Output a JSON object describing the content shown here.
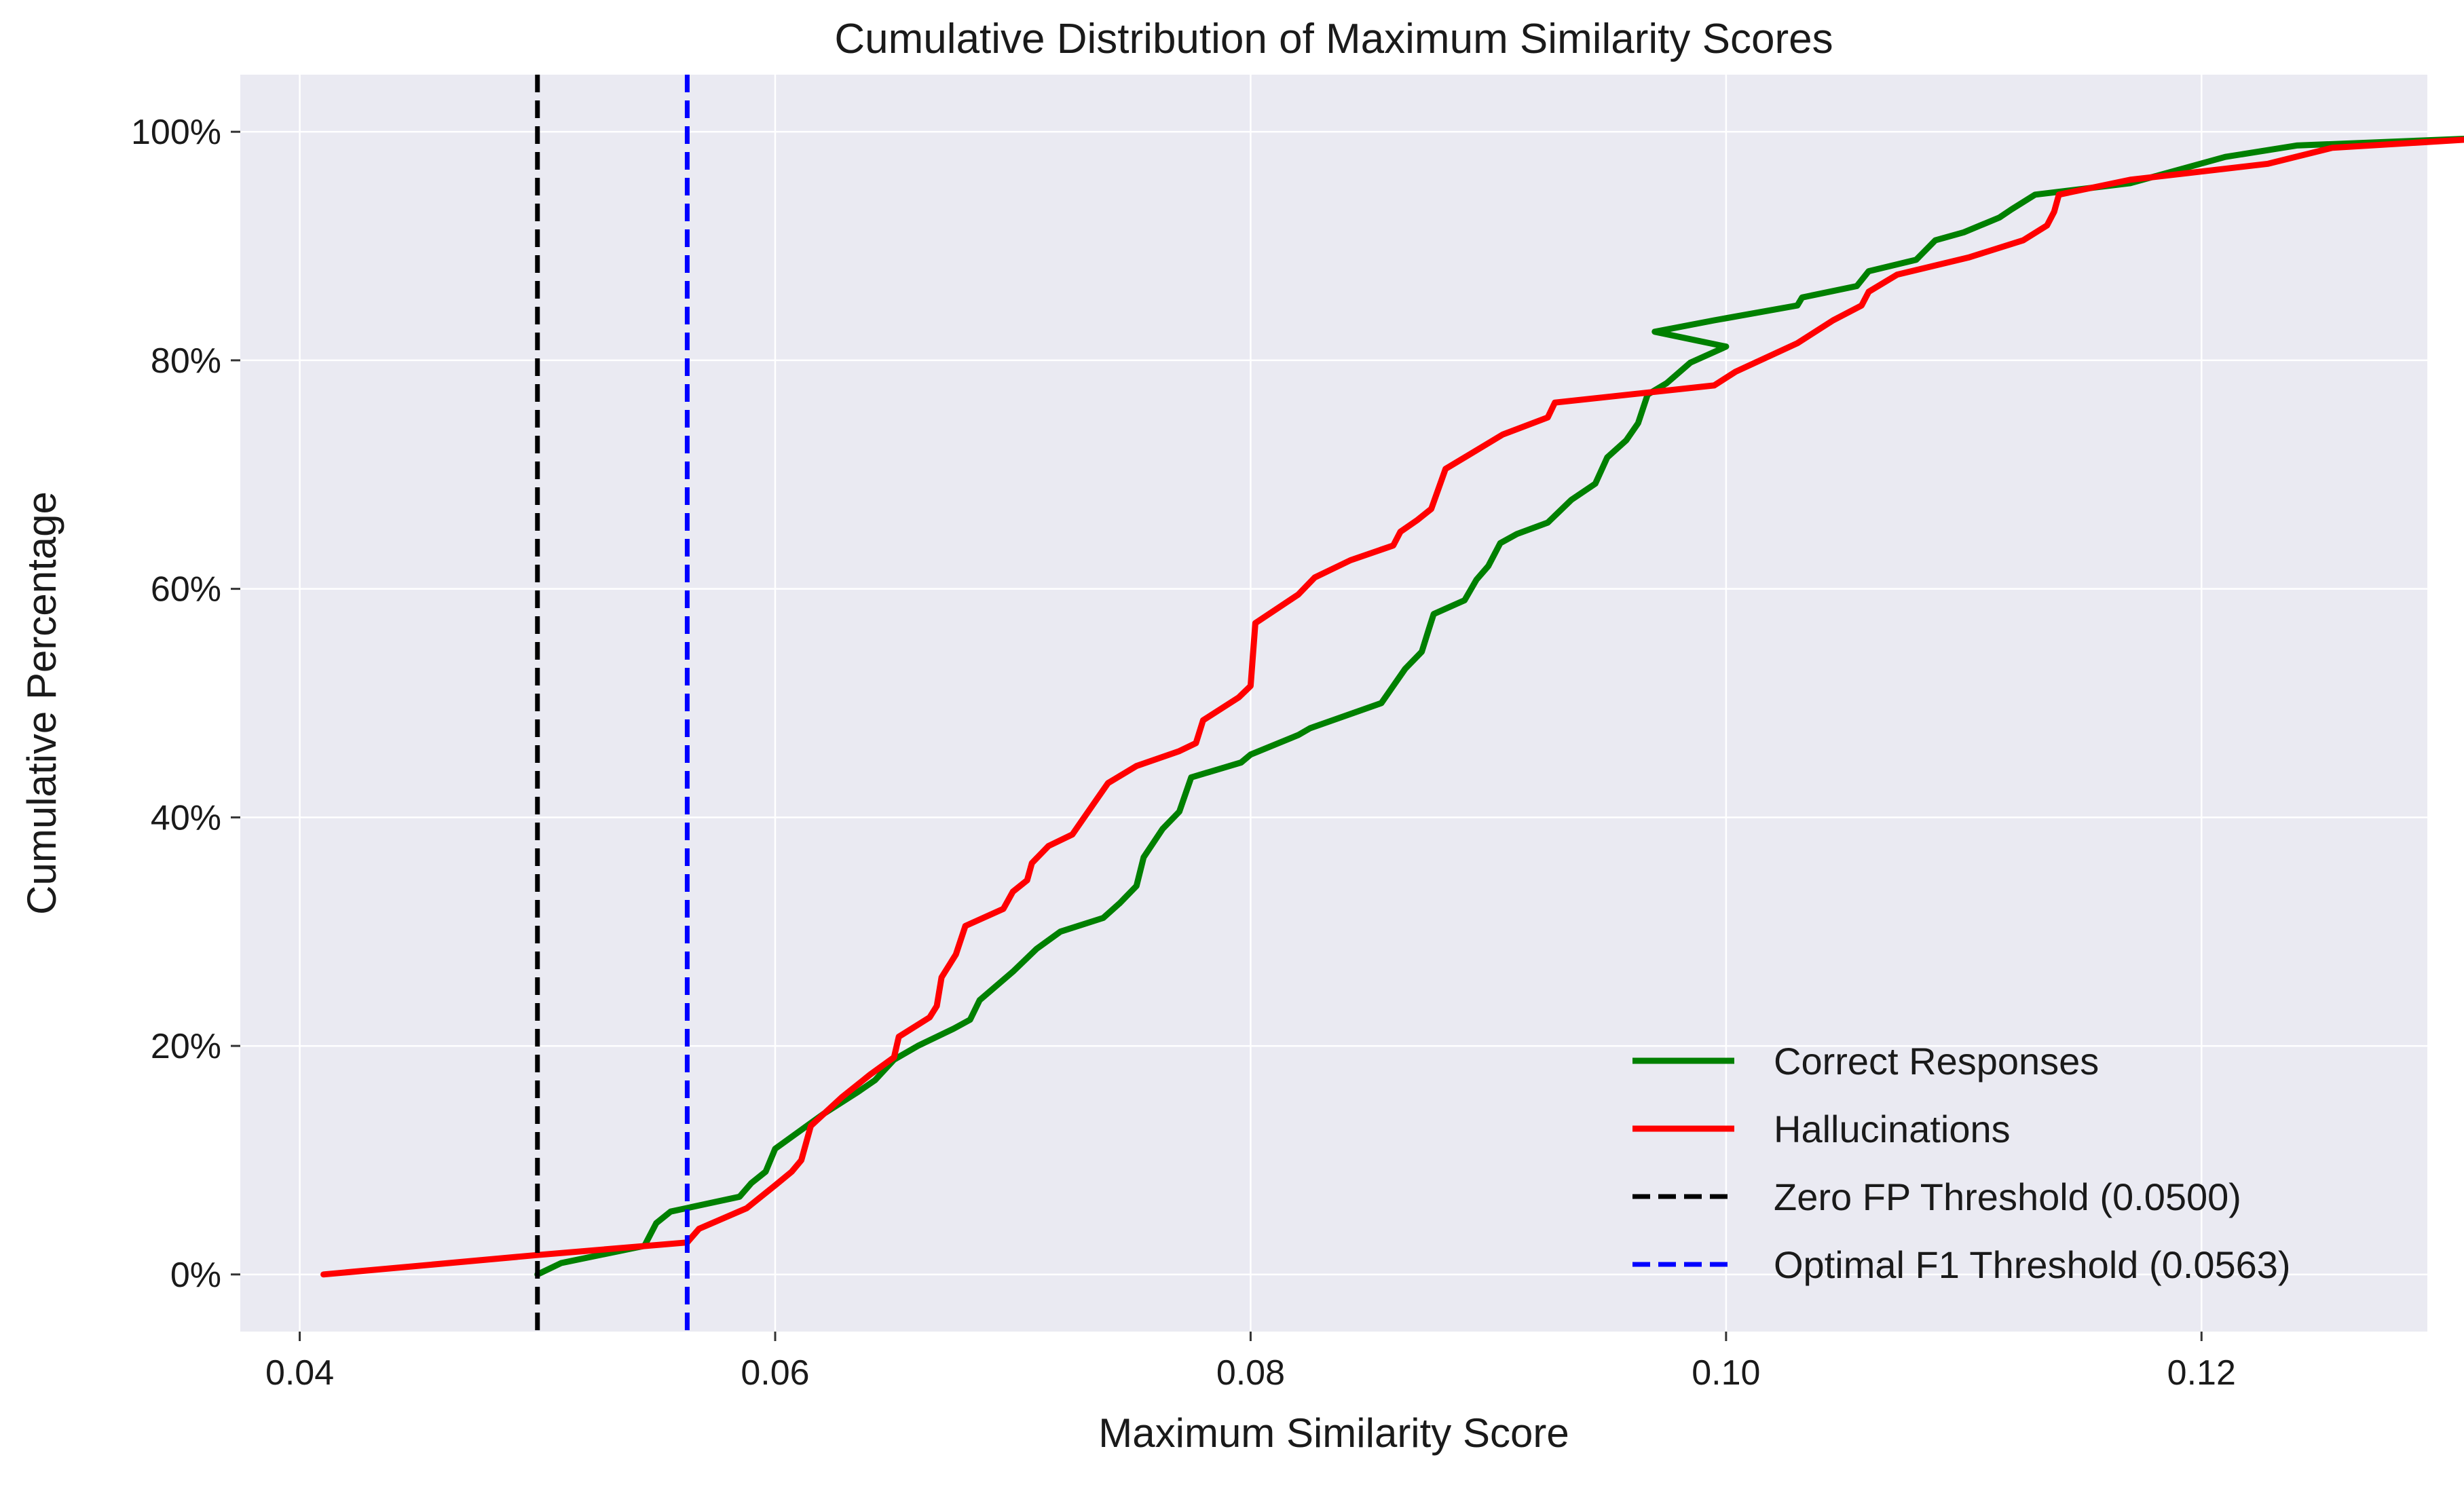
{
  "chart_data": {
    "type": "line",
    "title": "Cumulative Distribution of Maximum Similarity Scores",
    "xlabel": "Maximum Similarity Score",
    "ylabel": "Cumulative Percentage",
    "xlim": [
      0.0375,
      0.1295
    ],
    "ylim": [
      -5,
      105
    ],
    "x_ticks": [
      0.04,
      0.06,
      0.08,
      0.1,
      0.12
    ],
    "x_tick_labels": [
      "0.04",
      "0.06",
      "0.08",
      "0.10",
      "0.12"
    ],
    "y_ticks": [
      0,
      20,
      40,
      60,
      80,
      100
    ],
    "y_tick_labels": [
      "0%",
      "20%",
      "40%",
      "60%",
      "80%",
      "100%"
    ],
    "grid": true,
    "background": "#eaeaf2",
    "legend_position": "lower-right",
    "series": [
      {
        "name": "Correct Responses",
        "color": "#008000",
        "style": "solid",
        "points": [
          [
            0.05,
            0.0
          ],
          [
            0.051,
            1.0
          ],
          [
            0.0545,
            2.5
          ],
          [
            0.055,
            4.5
          ],
          [
            0.0556,
            5.5
          ],
          [
            0.0585,
            6.8
          ],
          [
            0.059,
            8.0
          ],
          [
            0.0596,
            9.0
          ],
          [
            0.06,
            11.0
          ],
          [
            0.062,
            14.0
          ],
          [
            0.0635,
            16.0
          ],
          [
            0.0642,
            17.0
          ],
          [
            0.065,
            18.8
          ],
          [
            0.066,
            20.0
          ],
          [
            0.0675,
            21.5
          ],
          [
            0.0682,
            22.3
          ],
          [
            0.0686,
            24.0
          ],
          [
            0.07,
            26.5
          ],
          [
            0.071,
            28.5
          ],
          [
            0.072,
            30.0
          ],
          [
            0.0738,
            31.2
          ],
          [
            0.0745,
            32.5
          ],
          [
            0.0752,
            34.0
          ],
          [
            0.0755,
            36.5
          ],
          [
            0.0763,
            39.0
          ],
          [
            0.077,
            40.5
          ],
          [
            0.0775,
            43.5
          ],
          [
            0.0796,
            44.8
          ],
          [
            0.08,
            45.5
          ],
          [
            0.082,
            47.2
          ],
          [
            0.0825,
            47.8
          ],
          [
            0.0855,
            50.0
          ],
          [
            0.0865,
            53.0
          ],
          [
            0.0872,
            54.5
          ],
          [
            0.0875,
            56.5
          ],
          [
            0.0877,
            57.8
          ],
          [
            0.089,
            59.0
          ],
          [
            0.0895,
            60.8
          ],
          [
            0.09,
            62.0
          ],
          [
            0.0905,
            64.0
          ],
          [
            0.0912,
            64.8
          ],
          [
            0.0925,
            65.8
          ],
          [
            0.0935,
            67.8
          ],
          [
            0.0945,
            69.2
          ],
          [
            0.095,
            71.5
          ],
          [
            0.0958,
            73.0
          ],
          [
            0.0963,
            74.5
          ],
          [
            0.0967,
            77.0
          ],
          [
            0.0975,
            78.0
          ],
          [
            0.0985,
            79.8
          ],
          [
            0.1,
            81.2
          ],
          [
            0.097,
            82.5
          ],
          [
            0.0995,
            83.5
          ],
          [
            0.103,
            84.8
          ],
          [
            0.1032,
            85.5
          ],
          [
            0.1055,
            86.5
          ],
          [
            0.106,
            87.8
          ],
          [
            0.108,
            88.8
          ],
          [
            0.1088,
            90.5
          ],
          [
            0.11,
            91.2
          ],
          [
            0.1115,
            92.5
          ],
          [
            0.112,
            93.2
          ],
          [
            0.113,
            94.5
          ],
          [
            0.117,
            95.5
          ],
          [
            0.121,
            97.8
          ],
          [
            0.124,
            98.8
          ],
          [
            0.13,
            99.3
          ],
          [
            0.1385,
            100.0
          ]
        ]
      },
      {
        "name": "Hallucinations",
        "color": "#ff0000",
        "style": "solid",
        "points": [
          [
            0.041,
            0.0
          ],
          [
            0.05,
            1.7
          ],
          [
            0.0563,
            2.8
          ],
          [
            0.0568,
            4.0
          ],
          [
            0.0588,
            5.8
          ],
          [
            0.06,
            7.8
          ],
          [
            0.0607,
            9.0
          ],
          [
            0.0611,
            10.0
          ],
          [
            0.0615,
            13.0
          ],
          [
            0.0628,
            15.5
          ],
          [
            0.064,
            17.5
          ],
          [
            0.065,
            19.0
          ],
          [
            0.0652,
            20.8
          ],
          [
            0.0665,
            22.5
          ],
          [
            0.0668,
            23.5
          ],
          [
            0.067,
            26.0
          ],
          [
            0.0676,
            28.0
          ],
          [
            0.068,
            30.5
          ],
          [
            0.0696,
            32.0
          ],
          [
            0.07,
            33.5
          ],
          [
            0.0706,
            34.5
          ],
          [
            0.0708,
            36.0
          ],
          [
            0.0715,
            37.5
          ],
          [
            0.0725,
            38.5
          ],
          [
            0.0735,
            41.5
          ],
          [
            0.074,
            43.0
          ],
          [
            0.0752,
            44.5
          ],
          [
            0.077,
            45.8
          ],
          [
            0.0777,
            46.5
          ],
          [
            0.078,
            48.5
          ],
          [
            0.0795,
            50.5
          ],
          [
            0.08,
            51.5
          ],
          [
            0.0802,
            57.0
          ],
          [
            0.082,
            59.5
          ],
          [
            0.0827,
            61.0
          ],
          [
            0.0842,
            62.5
          ],
          [
            0.086,
            63.8
          ],
          [
            0.0863,
            65.0
          ],
          [
            0.087,
            66.0
          ],
          [
            0.0876,
            67.0
          ],
          [
            0.0882,
            70.5
          ],
          [
            0.0906,
            73.5
          ],
          [
            0.0925,
            75.0
          ],
          [
            0.0928,
            76.3
          ],
          [
            0.0995,
            77.8
          ],
          [
            0.1004,
            79.0
          ],
          [
            0.103,
            81.5
          ],
          [
            0.1045,
            83.5
          ],
          [
            0.1057,
            84.8
          ],
          [
            0.106,
            86.0
          ],
          [
            0.1072,
            87.5
          ],
          [
            0.1102,
            89.0
          ],
          [
            0.1125,
            90.5
          ],
          [
            0.1135,
            91.8
          ],
          [
            0.1138,
            93.0
          ],
          [
            0.114,
            94.5
          ],
          [
            0.117,
            95.8
          ],
          [
            0.1228,
            97.2
          ],
          [
            0.1255,
            98.6
          ],
          [
            0.131,
            99.3
          ],
          [
            0.1385,
            100.0
          ]
        ]
      },
      {
        "name": "Zero FP Threshold (0.0500)",
        "color": "#000000",
        "style": "dashed",
        "vline": 0.05
      },
      {
        "name": "Optimal F1 Threshold (0.0563)",
        "color": "#0000ff",
        "style": "dashed",
        "vline": 0.0563
      }
    ]
  }
}
